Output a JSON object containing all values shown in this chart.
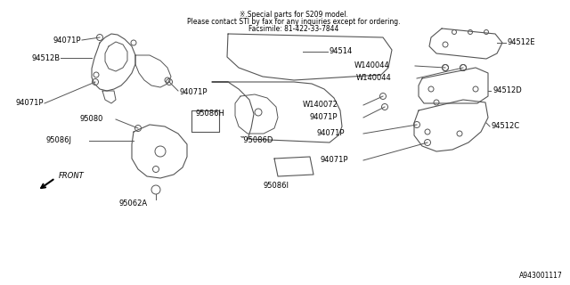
{
  "bg_color": "#ffffff",
  "line_color": "#555555",
  "text_color": "#000000",
  "title_lines": [
    "※.Special parts for S209 model.",
    "Please contact STI by fax for any inquiries except for ordering.",
    "Facsimile: 81-422-33-7844"
  ],
  "footer_text": "A943001117",
  "figsize": [
    6.4,
    3.2
  ],
  "dpi": 100
}
